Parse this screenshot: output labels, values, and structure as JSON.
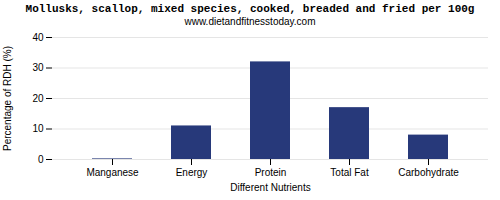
{
  "chart_data": {
    "type": "bar",
    "title": "Mollusks, scallop, mixed species, cooked, breaded and fried per 100g",
    "subtitle": "www.dietandfitnesstoday.com",
    "xlabel": "Different Nutrients",
    "ylabel": "Percentage of RDH (%)",
    "categories": [
      "Manganese",
      "Energy",
      "Protein",
      "Total Fat",
      "Carbohydrate"
    ],
    "values": [
      0.2,
      11,
      32,
      17,
      8
    ],
    "color": "#27397a",
    "ylim": [
      0,
      40
    ],
    "yticks": [
      0,
      10,
      20,
      30,
      40
    ],
    "grid": true
  }
}
